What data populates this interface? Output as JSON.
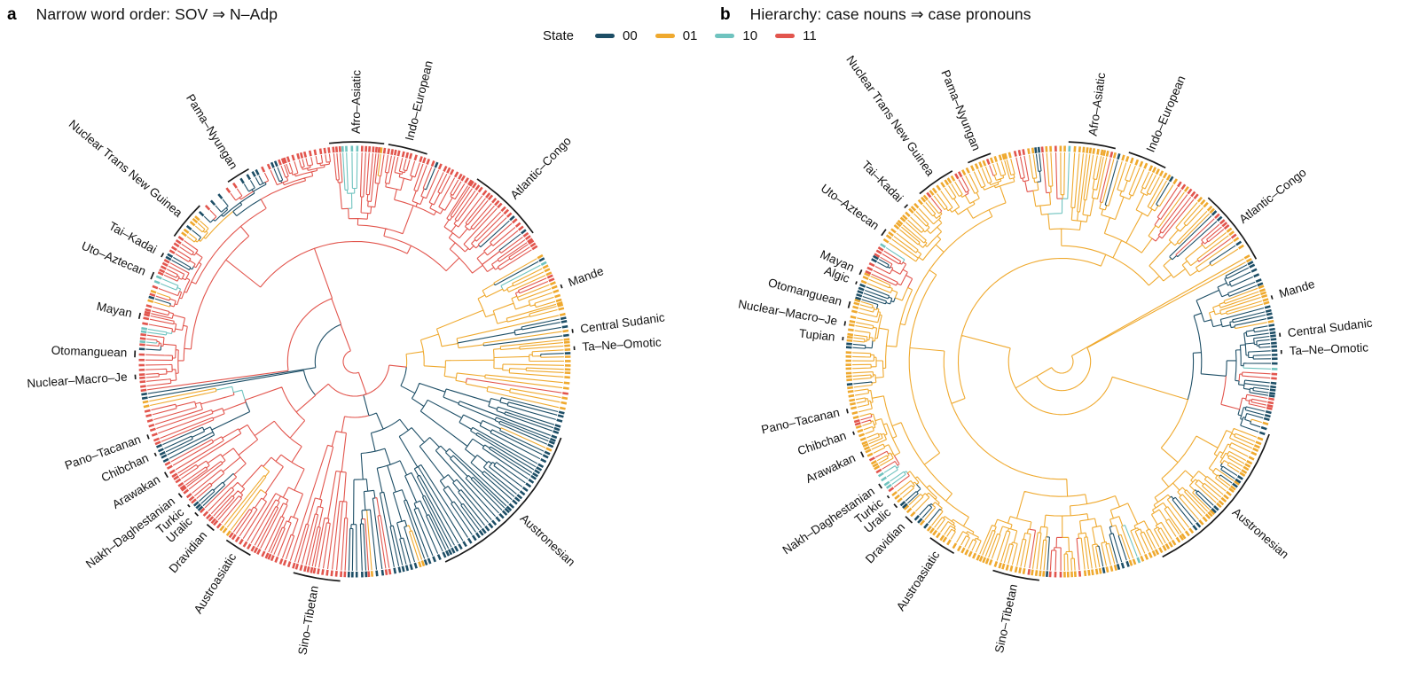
{
  "figure": {
    "background": "#ffffff",
    "text_color": "#111111",
    "legend": {
      "title": "State",
      "items": [
        {
          "label": "00",
          "color": "#1d4e66"
        },
        {
          "label": "01",
          "color": "#efa92e"
        },
        {
          "label": "10",
          "color": "#6fc3bf"
        },
        {
          "label": "11",
          "color": "#e2554d"
        }
      ]
    },
    "panels": [
      {
        "letter": "a",
        "title": "Narrow word order: SOV ⇒ N–Adp",
        "families": [
          {
            "name": "Afro–Asiatic",
            "angle_deg": 0.5,
            "arc_span_deg": 15
          },
          {
            "name": "Indo–European",
            "angle_deg": 14,
            "arc_span_deg": 11
          },
          {
            "name": "Atlantic–Congo",
            "angle_deg": 44,
            "arc_span_deg": 21
          },
          {
            "name": "Mande",
            "angle_deg": 70,
            "arc_span_deg": 1.6
          },
          {
            "name": "Central Sudanic",
            "angle_deg": 82,
            "arc_span_deg": 1.6
          },
          {
            "name": "Ta–Ne–Omotic",
            "angle_deg": 86.5,
            "arc_span_deg": 1.6
          },
          {
            "name": "Austronesian",
            "angle_deg": 133,
            "arc_span_deg": 46
          },
          {
            "name": "Sino–Tibetan",
            "angle_deg": 190,
            "arc_span_deg": 13
          },
          {
            "name": "Austroasiatic",
            "angle_deg": 212,
            "arc_span_deg": 8
          },
          {
            "name": "Dravidian",
            "angle_deg": 221,
            "arc_span_deg": 3
          },
          {
            "name": "Uralic",
            "angle_deg": 226,
            "arc_span_deg": 1.8
          },
          {
            "name": "Turkic",
            "angle_deg": 229,
            "arc_span_deg": 1.4
          },
          {
            "name": "Nakh–Daghestanian",
            "angle_deg": 232.5,
            "arc_span_deg": 2
          },
          {
            "name": "Arawakan",
            "angle_deg": 239,
            "arc_span_deg": 2.2
          },
          {
            "name": "Chibchan",
            "angle_deg": 245,
            "arc_span_deg": 1.5
          },
          {
            "name": "Pano–Tacanan",
            "angle_deg": 250,
            "arc_span_deg": 1.8
          },
          {
            "name": "Nuclear–Macro–Je",
            "angle_deg": 266,
            "arc_span_deg": 1.8
          },
          {
            "name": "Otomanguean",
            "angle_deg": 272,
            "arc_span_deg": 2.4
          },
          {
            "name": "Mayan",
            "angle_deg": 282,
            "arc_span_deg": 2.2
          },
          {
            "name": "Uto–Aztecan",
            "angle_deg": 293,
            "arc_span_deg": 2.6
          },
          {
            "name": "Tai–Kadai",
            "angle_deg": 299,
            "arc_span_deg": 1.8
          },
          {
            "name": "Nuclear Trans New Guinea",
            "angle_deg": 310,
            "arc_span_deg": 11
          },
          {
            "name": "Pama–Nyungan",
            "angle_deg": 328,
            "arc_span_deg": 7
          }
        ]
      },
      {
        "letter": "b",
        "title": "Hierarchy: case nouns ⇒ case pronouns",
        "families": [
          {
            "name": "Afro–Asiatic",
            "angle_deg": 8,
            "arc_span_deg": 13
          },
          {
            "name": "Indo–European",
            "angle_deg": 23,
            "arc_span_deg": 11
          },
          {
            "name": "Atlantic–Congo",
            "angle_deg": 52,
            "arc_span_deg": 21
          },
          {
            "name": "Mande",
            "angle_deg": 73,
            "arc_span_deg": 1.6
          },
          {
            "name": "Central Sudanic",
            "angle_deg": 83,
            "arc_span_deg": 1.6
          },
          {
            "name": "Ta–Ne–Omotic",
            "angle_deg": 87.5,
            "arc_span_deg": 1.6
          },
          {
            "name": "Austronesian",
            "angle_deg": 131,
            "arc_span_deg": 44
          },
          {
            "name": "Sino–Tibetan",
            "angle_deg": 192,
            "arc_span_deg": 13
          },
          {
            "name": "Austroasiatic",
            "angle_deg": 213,
            "arc_span_deg": 8
          },
          {
            "name": "Dravidian",
            "angle_deg": 224,
            "arc_span_deg": 3
          },
          {
            "name": "Uralic",
            "angle_deg": 229,
            "arc_span_deg": 1.8
          },
          {
            "name": "Turkic",
            "angle_deg": 232,
            "arc_span_deg": 1.4
          },
          {
            "name": "Nakh–Daghestanian",
            "angle_deg": 235.5,
            "arc_span_deg": 2
          },
          {
            "name": "Arawakan",
            "angle_deg": 245,
            "arc_span_deg": 2.2
          },
          {
            "name": "Chibchan",
            "angle_deg": 251,
            "arc_span_deg": 1.5
          },
          {
            "name": "Pano–Tacanan",
            "angle_deg": 257,
            "arc_span_deg": 1.8
          },
          {
            "name": "Tupian",
            "angle_deg": 276,
            "arc_span_deg": 1.5
          },
          {
            "name": "Nuclear–Macro–Je",
            "angle_deg": 280,
            "arc_span_deg": 1.8
          },
          {
            "name": "Otomanguean",
            "angle_deg": 285,
            "arc_span_deg": 2.4
          },
          {
            "name": "Algic",
            "angle_deg": 291,
            "arc_span_deg": 1.4
          },
          {
            "name": "Mayan",
            "angle_deg": 294,
            "arc_span_deg": 2
          },
          {
            "name": "Uto–Aztecan",
            "angle_deg": 306,
            "arc_span_deg": 2.6
          },
          {
            "name": "Tai–Kadai",
            "angle_deg": 315,
            "arc_span_deg": 1.8
          },
          {
            "name": "Nuclear Trans New Guinea",
            "angle_deg": 325,
            "arc_span_deg": 11
          },
          {
            "name": "Pama–Nyungan",
            "angle_deg": 338,
            "arc_span_deg": 7
          }
        ]
      }
    ],
    "state_regions": [
      {
        "from_deg": 0,
        "to_deg": 30,
        "weights": {
          "00": 0.3,
          "01": 0.12,
          "10": 0.06,
          "11": 0.52
        }
      },
      {
        "from_deg": 30,
        "to_deg": 60,
        "weights": {
          "00": 0.55,
          "01": 0.12,
          "10": 0.05,
          "11": 0.28
        }
      },
      {
        "from_deg": 60,
        "to_deg": 95,
        "weights": {
          "00": 0.26,
          "01": 0.38,
          "10": 0.05,
          "11": 0.31
        }
      },
      {
        "from_deg": 95,
        "to_deg": 170,
        "weights": {
          "00": 0.6,
          "01": 0.19,
          "10": 0.05,
          "11": 0.16
        }
      },
      {
        "from_deg": 170,
        "to_deg": 205,
        "weights": {
          "00": 0.16,
          "01": 0.1,
          "10": 0.05,
          "11": 0.69
        }
      },
      {
        "from_deg": 205,
        "to_deg": 225,
        "weights": {
          "00": 0.4,
          "01": 0.25,
          "10": 0.05,
          "11": 0.3
        }
      },
      {
        "from_deg": 225,
        "to_deg": 262,
        "weights": {
          "00": 0.18,
          "01": 0.22,
          "10": 0.05,
          "11": 0.55
        }
      },
      {
        "from_deg": 262,
        "to_deg": 295,
        "weights": {
          "00": 0.24,
          "01": 0.4,
          "10": 0.05,
          "11": 0.31
        }
      },
      {
        "from_deg": 295,
        "to_deg": 335,
        "weights": {
          "00": 0.2,
          "01": 0.13,
          "10": 0.05,
          "11": 0.62
        }
      },
      {
        "from_deg": 335,
        "to_deg": 360,
        "weights": {
          "00": 0.26,
          "01": 0.25,
          "10": 0.05,
          "11": 0.44
        }
      }
    ]
  }
}
